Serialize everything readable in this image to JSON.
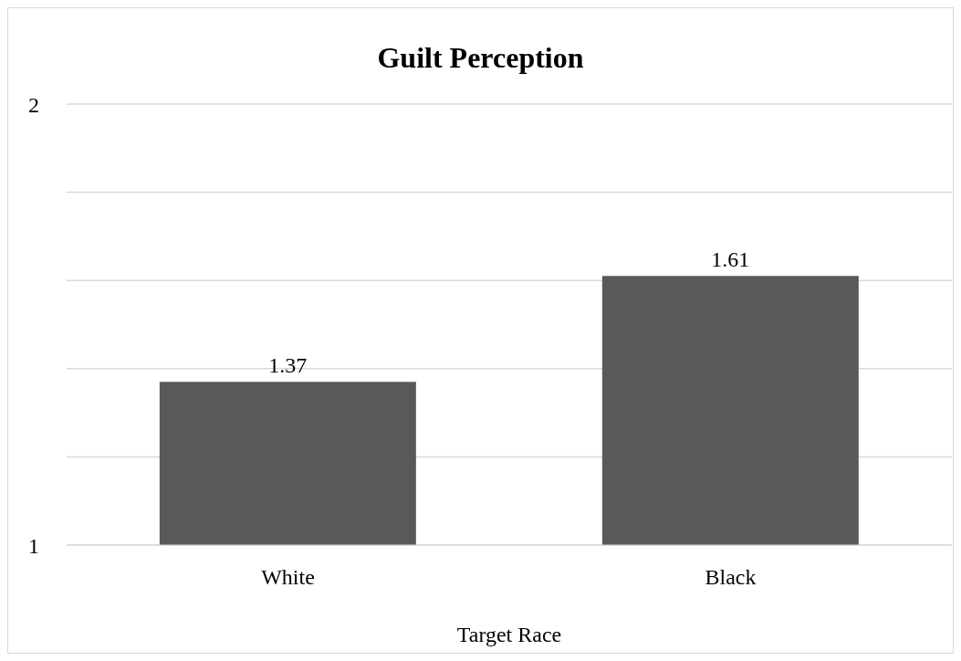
{
  "chart_data": {
    "type": "bar",
    "title": "Guilt Perception",
    "xlabel": "Target Race",
    "categories": [
      "White",
      "Black"
    ],
    "values": [
      1.37,
      1.61
    ],
    "color": "#595959",
    "ylim": [
      1,
      2
    ],
    "yticks": [
      1,
      {
        "value": 1.2,
        "label": null
      },
      {
        "value": 1.4,
        "label": null
      },
      {
        "value": 1.6,
        "label": null
      },
      {
        "value": 1.8,
        "label": null
      },
      2
    ],
    "grid": "y",
    "data_labels": true
  }
}
